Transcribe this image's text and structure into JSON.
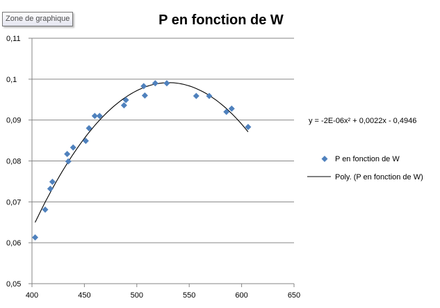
{
  "tooltip": "Zone de graphique",
  "chart_data": {
    "type": "scatter",
    "title": "P en fonction de W",
    "xlabel": "",
    "ylabel": "",
    "xlim": [
      400,
      650
    ],
    "ylim": [
      0.05,
      0.11
    ],
    "xticks": [
      "400",
      "450",
      "500",
      "550",
      "600",
      "650"
    ],
    "yticks": [
      "0,05",
      "0,06",
      "0,07",
      "0,08",
      "0,09",
      "0,1",
      "0,11"
    ],
    "grid": "horizontal",
    "legend": "right",
    "series": [
      {
        "name": "P en fonction de W",
        "color": "#4F81BD",
        "marker": "diamond",
        "points": [
          [
            403,
            0.0613
          ],
          [
            412.6,
            0.0681
          ],
          [
            417.5,
            0.0732
          ],
          [
            419.5,
            0.0749
          ],
          [
            433.6,
            0.0817
          ],
          [
            434.7,
            0.0799
          ],
          [
            439.3,
            0.0833
          ],
          [
            451.3,
            0.0849
          ],
          [
            454.4,
            0.088
          ],
          [
            459.9,
            0.091
          ],
          [
            464.5,
            0.091
          ],
          [
            487.8,
            0.0936
          ],
          [
            489.6,
            0.0949
          ],
          [
            506.6,
            0.0983
          ],
          [
            507.7,
            0.096
          ],
          [
            517.6,
            0.099
          ],
          [
            528.6,
            0.099
          ],
          [
            556.7,
            0.0959
          ],
          [
            569.1,
            0.0959
          ],
          [
            585.5,
            0.092
          ],
          [
            590.5,
            0.0928
          ],
          [
            606.2,
            0.0883
          ]
        ]
      }
    ],
    "trendline": {
      "name": "Poly. (P en fonction de W)",
      "type": "polynomial",
      "order": 2,
      "color": "#000000",
      "equation": "y = -2E-06x² + 0,0022x - 0,4946"
    }
  }
}
